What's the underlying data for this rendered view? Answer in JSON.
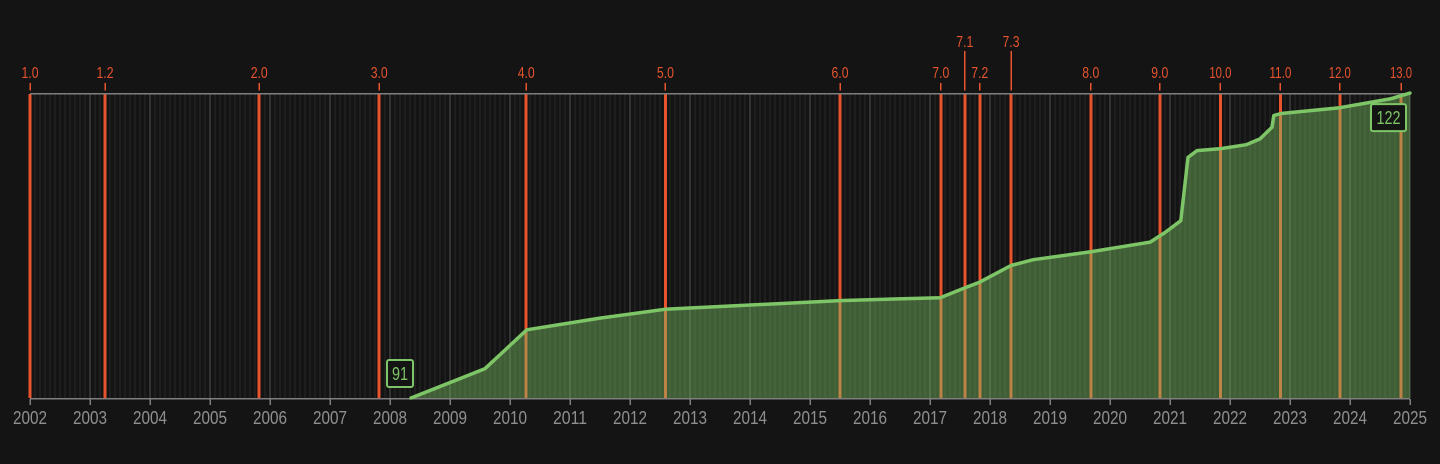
{
  "chart_data": {
    "type": "area",
    "title": "",
    "xlabel": "",
    "ylabel": "",
    "legend": "none",
    "grid": "vertical-monthly",
    "x_axis": {
      "range": [
        2002,
        2025
      ],
      "tick_step_years": 1,
      "year_ticks": [
        2002,
        2003,
        2004,
        2005,
        2006,
        2007,
        2008,
        2009,
        2010,
        2011,
        2012,
        2013,
        2014,
        2015,
        2016,
        2017,
        2018,
        2019,
        2020,
        2021,
        2022,
        2023,
        2024,
        2025
      ]
    },
    "y_axis": {
      "visible": false,
      "value_range": [
        91,
        122
      ]
    },
    "top_markers": {
      "description": "version release markers",
      "color": "#e8542e",
      "items": [
        {
          "label": "1.0",
          "year": 2002.0,
          "row": 1
        },
        {
          "label": "1.2",
          "year": 2003.25,
          "row": 1
        },
        {
          "label": "2.0",
          "year": 2005.82,
          "row": 1
        },
        {
          "label": "3.0",
          "year": 2007.82,
          "row": 1
        },
        {
          "label": "4.0",
          "year": 2010.27,
          "row": 1
        },
        {
          "label": "5.0",
          "year": 2012.59,
          "row": 1
        },
        {
          "label": "6.0",
          "year": 2015.5,
          "row": 1
        },
        {
          "label": "7.0",
          "year": 2017.18,
          "row": 1
        },
        {
          "label": "7.1",
          "year": 2017.58,
          "row": 2
        },
        {
          "label": "7.2",
          "year": 2017.83,
          "row": 1
        },
        {
          "label": "7.3",
          "year": 2018.35,
          "row": 2
        },
        {
          "label": "8.0",
          "year": 2019.68,
          "row": 1
        },
        {
          "label": "9.0",
          "year": 2020.83,
          "row": 1
        },
        {
          "label": "10.0",
          "year": 2021.84,
          "row": 1
        },
        {
          "label": "11.0",
          "year": 2022.84,
          "row": 1
        },
        {
          "label": "12.0",
          "year": 2023.83,
          "row": 1
        },
        {
          "label": "13.0",
          "year": 2024.85,
          "row": 1
        }
      ]
    },
    "series": [
      {
        "name": "value",
        "color": "#7dc566",
        "fill_alpha": 0.42,
        "points": [
          [
            2008.35,
            91.0
          ],
          [
            2009.58,
            94.0
          ],
          [
            2010.28,
            98.0
          ],
          [
            2011.5,
            99.2
          ],
          [
            2012.58,
            100.1
          ],
          [
            2015.5,
            101.0
          ],
          [
            2017.17,
            101.3
          ],
          [
            2017.58,
            102.3
          ],
          [
            2017.83,
            102.9
          ],
          [
            2018.35,
            104.6
          ],
          [
            2018.72,
            105.2
          ],
          [
            2019.67,
            106.0
          ],
          [
            2020.67,
            107.0
          ],
          [
            2020.92,
            108.0
          ],
          [
            2021.18,
            109.2
          ],
          [
            2021.3,
            115.7
          ],
          [
            2021.45,
            116.4
          ],
          [
            2021.85,
            116.6
          ],
          [
            2022.27,
            117.0
          ],
          [
            2022.5,
            117.6
          ],
          [
            2022.65,
            118.5
          ],
          [
            2022.7,
            118.8
          ],
          [
            2022.73,
            120.0
          ],
          [
            2022.85,
            120.2
          ],
          [
            2023.83,
            120.8
          ],
          [
            2024.67,
            121.7
          ],
          [
            2025.0,
            122.3
          ]
        ]
      }
    ],
    "annotations": [
      {
        "label": "91",
        "anchor": "first"
      },
      {
        "label": "122",
        "anchor": "last"
      }
    ]
  },
  "colors": {
    "background": "#141414",
    "grid_minor": "#292929",
    "grid_major": "#525252",
    "axis": "#7e7e7e",
    "tick_label": "#8f8f8f",
    "marker": "#e8542e",
    "series_green": "#7dc566",
    "annotation_box_bg": "#141414"
  }
}
